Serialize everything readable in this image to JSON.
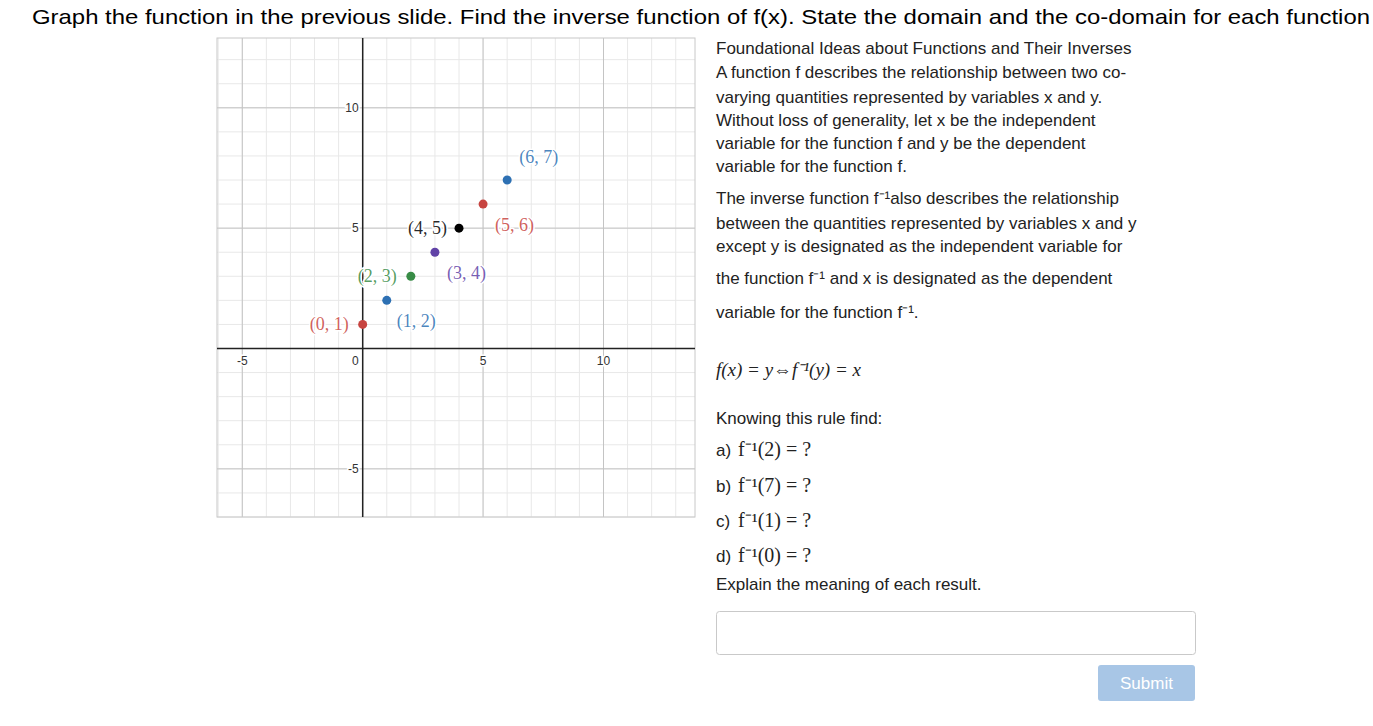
{
  "title": "Graph the function in the previous slide. Find the inverse function of f(x). State the domain and the co-domain for each function",
  "chart_data": {
    "type": "scatter",
    "x": [
      0,
      1,
      2,
      3,
      4,
      5,
      6
    ],
    "values": [
      1,
      2,
      3,
      4,
      5,
      6,
      7
    ],
    "colors": [
      "#c74440",
      "#2d70b3",
      "#388c46",
      "#6042a6",
      "#000000",
      "#c74440",
      "#2d70b3"
    ],
    "data_labels": true,
    "value_labels": [
      "(0, 1)",
      "(1, 2)",
      "(2, 3)",
      "(3, 4)",
      "(4, 5)",
      "(5, 6)",
      "(6, 7)"
    ],
    "xlim": [
      -6.05,
      13.8
    ],
    "ylim": [
      -7,
      12.9
    ],
    "xticks": [
      -5,
      0,
      5,
      10
    ],
    "yticks": [
      -5,
      5,
      10
    ],
    "grid": true,
    "marker": "circle"
  },
  "panel": {
    "lines": [
      "Foundational Ideas about Functions and Their Inverses",
      "A function f   describes the relationship between two co-",
      "varying quantities represented by variables x and y.",
      "Without loss of generality, let x be the independent",
      "variable for the function f and y be the dependent",
      "variable for the function f.",
      "The inverse function f⁻¹also describes the relationship",
      "between the quantities represented by variables x and y",
      "except y is designated as the independent variable for",
      "the function f⁻¹ and x is designated as the dependent",
      "variable for the function f⁻¹."
    ],
    "rule": "f(x) = y⇔f⁻¹(y) = x",
    "prompt": "Knowing this rule find:",
    "questions": [
      {
        "label": "a)",
        "expr": "f⁻¹(2) = ?"
      },
      {
        "label": "b)",
        "expr": "f⁻¹(7) = ?"
      },
      {
        "label": "c)",
        "expr": "f⁻¹(1) = ?"
      },
      {
        "label": "d)",
        "expr": "f⁻¹(0) = ?"
      }
    ],
    "instruction": "Explain the meaning of each result.",
    "button": "Submit"
  }
}
